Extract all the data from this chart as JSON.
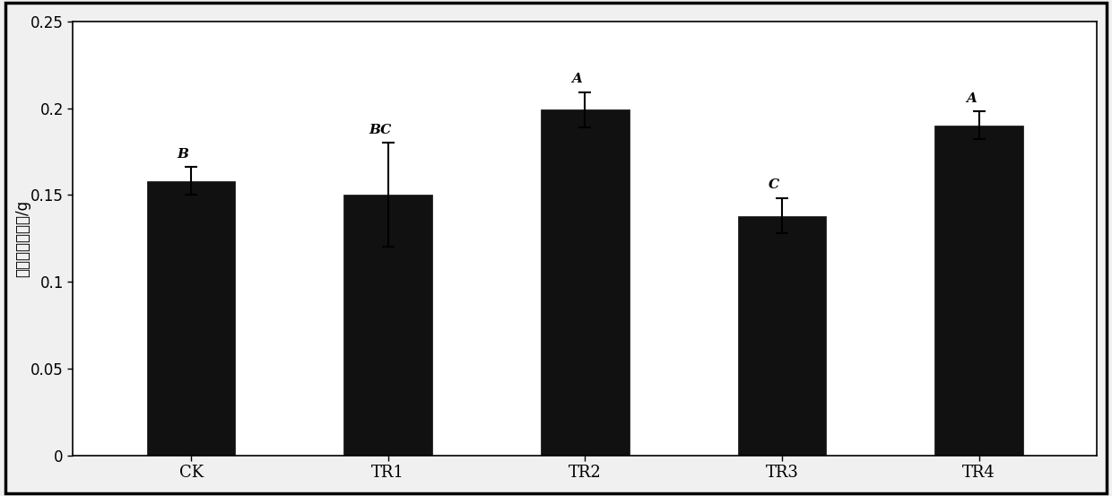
{
  "categories": [
    "CK",
    "TR1",
    "TR2",
    "TR3",
    "TR4"
  ],
  "values": [
    0.158,
    0.15,
    0.199,
    0.138,
    0.19
  ],
  "errors": [
    0.008,
    0.03,
    0.01,
    0.01,
    0.008
  ],
  "sig_labels": [
    "B",
    "BC",
    "A",
    "C",
    "A"
  ],
  "bar_color": "#111111",
  "bar_width": 0.45,
  "ylabel": "单叶鲜重净增量/g",
  "ylim": [
    0,
    0.25
  ],
  "yticks": [
    0,
    0.05,
    0.1,
    0.15,
    0.2,
    0.25
  ],
  "background_color": "#f0f0f0",
  "plot_bg_color": "#ffffff",
  "fig_width": 12.4,
  "fig_height": 5.53,
  "dpi": 100
}
